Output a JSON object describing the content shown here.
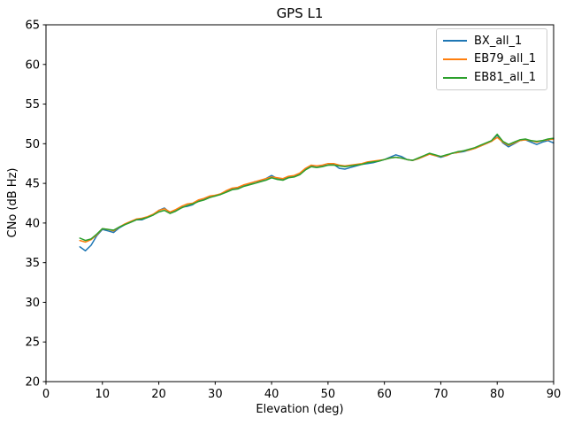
{
  "title": "GPS L1",
  "axes": {
    "xlabel": "Elevation (deg)",
    "ylabel": "CNo (dB Hz)",
    "xlim": [
      0,
      90
    ],
    "ylim": [
      20,
      65
    ],
    "x_ticks": [
      0,
      10,
      20,
      30,
      40,
      50,
      60,
      70,
      80,
      90
    ],
    "y_ticks": [
      20,
      25,
      30,
      35,
      40,
      45,
      50,
      55,
      60,
      65
    ]
  },
  "legend": {
    "position": "upper right",
    "entries": [
      {
        "label": "BX_all_1",
        "color": "#1f77b4"
      },
      {
        "label": "EB79_all_1",
        "color": "#ff7f0e"
      },
      {
        "label": "EB81_all_1",
        "color": "#2ca02c"
      }
    ]
  },
  "chart_data": {
    "type": "line",
    "title": "GPS L1",
    "xlabel": "Elevation (deg)",
    "ylabel": "CNo (dB Hz)",
    "xlim": [
      0,
      90
    ],
    "ylim": [
      20,
      65
    ],
    "grid": false,
    "legend_position": "upper right",
    "x": [
      6,
      7,
      8,
      9,
      10,
      11,
      12,
      13,
      14,
      15,
      16,
      17,
      18,
      19,
      20,
      21,
      22,
      23,
      24,
      25,
      26,
      27,
      28,
      29,
      30,
      31,
      32,
      33,
      34,
      35,
      36,
      37,
      38,
      39,
      40,
      41,
      42,
      43,
      44,
      45,
      46,
      47,
      48,
      49,
      50,
      51,
      52,
      53,
      54,
      55,
      56,
      57,
      58,
      59,
      60,
      61,
      62,
      63,
      64,
      65,
      66,
      67,
      68,
      69,
      70,
      71,
      72,
      73,
      74,
      75,
      76,
      77,
      78,
      79,
      80,
      81,
      82,
      83,
      84,
      85,
      86,
      87,
      88,
      89,
      90
    ],
    "series": [
      {
        "name": "BX_all_1",
        "color": "#1f77b4",
        "values": [
          37.0,
          36.5,
          37.2,
          38.4,
          39.2,
          39.0,
          38.8,
          39.4,
          39.8,
          40.1,
          40.4,
          40.4,
          40.7,
          41.0,
          41.6,
          41.9,
          41.3,
          41.6,
          42.0,
          42.1,
          42.3,
          42.8,
          43.0,
          43.3,
          43.4,
          43.7,
          44.0,
          44.3,
          44.4,
          44.7,
          44.9,
          45.2,
          45.3,
          45.6,
          46.0,
          45.6,
          45.5,
          45.8,
          45.9,
          46.2,
          46.8,
          47.2,
          47.0,
          47.2,
          47.3,
          47.4,
          46.9,
          46.8,
          47.0,
          47.2,
          47.4,
          47.5,
          47.6,
          47.8,
          48.0,
          48.3,
          48.6,
          48.4,
          48.0,
          47.9,
          48.1,
          48.4,
          48.7,
          48.5,
          48.3,
          48.5,
          48.8,
          48.9,
          49.0,
          49.2,
          49.4,
          49.7,
          50.0,
          50.3,
          51.1,
          50.1,
          49.6,
          50.0,
          50.4,
          50.5,
          50.2,
          49.9,
          50.2,
          50.4,
          50.1
        ]
      },
      {
        "name": "EB79_all_1",
        "color": "#ff7f0e",
        "values": [
          37.8,
          37.6,
          37.9,
          38.5,
          39.3,
          39.2,
          39.0,
          39.5,
          39.9,
          40.2,
          40.5,
          40.6,
          40.8,
          41.1,
          41.6,
          41.8,
          41.4,
          41.7,
          42.1,
          42.4,
          42.5,
          42.9,
          43.1,
          43.4,
          43.5,
          43.7,
          44.1,
          44.4,
          44.5,
          44.8,
          45.0,
          45.2,
          45.4,
          45.6,
          45.8,
          45.7,
          45.6,
          45.9,
          46.0,
          46.3,
          46.9,
          47.3,
          47.2,
          47.3,
          47.5,
          47.5,
          47.3,
          47.2,
          47.3,
          47.4,
          47.5,
          47.7,
          47.8,
          47.9,
          48.0,
          48.2,
          48.3,
          48.2,
          48.0,
          47.9,
          48.1,
          48.4,
          48.7,
          48.5,
          48.4,
          48.5,
          48.8,
          48.9,
          49.1,
          49.2,
          49.4,
          49.7,
          50.0,
          50.3,
          50.8,
          50.2,
          49.8,
          50.1,
          50.4,
          50.5,
          50.4,
          50.2,
          50.4,
          50.5,
          50.6
        ]
      },
      {
        "name": "EB81_all_1",
        "color": "#2ca02c",
        "values": [
          38.1,
          37.8,
          38.0,
          38.6,
          39.3,
          39.2,
          39.1,
          39.5,
          39.8,
          40.1,
          40.4,
          40.5,
          40.7,
          41.0,
          41.4,
          41.6,
          41.2,
          41.5,
          41.9,
          42.2,
          42.4,
          42.7,
          42.9,
          43.2,
          43.4,
          43.6,
          43.9,
          44.2,
          44.3,
          44.6,
          44.8,
          45.0,
          45.2,
          45.4,
          45.7,
          45.5,
          45.4,
          45.7,
          45.8,
          46.1,
          46.7,
          47.1,
          47.0,
          47.1,
          47.3,
          47.3,
          47.2,
          47.1,
          47.2,
          47.3,
          47.4,
          47.6,
          47.7,
          47.8,
          48.0,
          48.2,
          48.3,
          48.2,
          48.0,
          47.9,
          48.2,
          48.5,
          48.8,
          48.6,
          48.4,
          48.6,
          48.8,
          49.0,
          49.1,
          49.3,
          49.5,
          49.8,
          50.1,
          50.4,
          51.2,
          50.3,
          49.9,
          50.2,
          50.5,
          50.6,
          50.4,
          50.3,
          50.4,
          50.6,
          50.7
        ]
      }
    ]
  }
}
